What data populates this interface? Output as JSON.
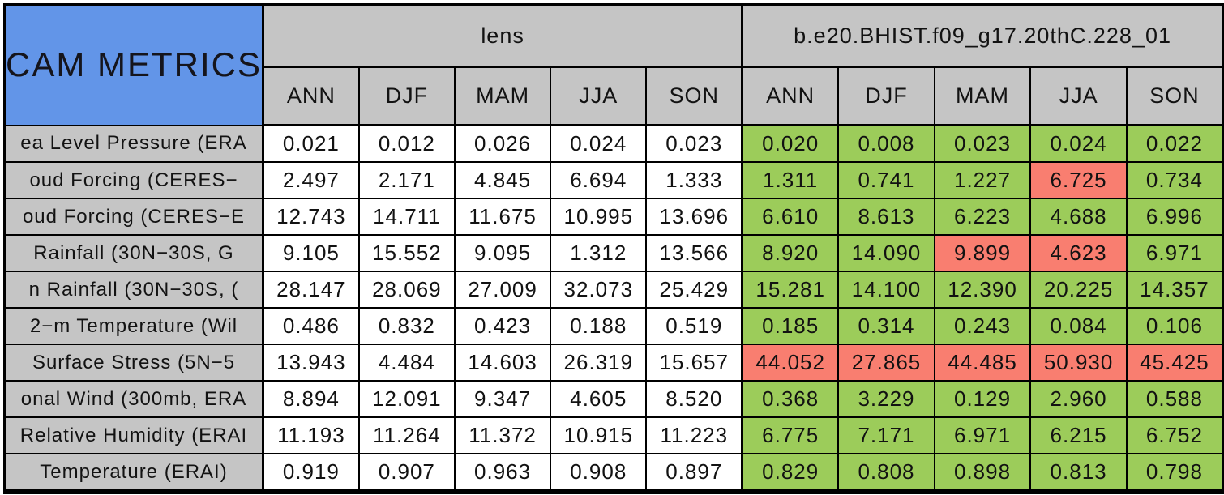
{
  "colors": {
    "title_background": "#6295e8",
    "header_background": "#c5c5c5",
    "pass_cell": "#9ccc5a",
    "fail_cell": "#f97e70",
    "plain_cell": "#ffffff",
    "border": "#000000"
  },
  "chart_data": {
    "type": "table",
    "title": "CAM METRICS",
    "column_groups": [
      {
        "label": "lens"
      },
      {
        "label": "b.e20.BHIST.f09_g17.20thC.228_01"
      }
    ],
    "seasons": [
      "ANN",
      "DJF",
      "MAM",
      "JJA",
      "SON"
    ],
    "rows": [
      {
        "label": "ea Level Pressure (ERA",
        "lens": [
          "0.021",
          "0.012",
          "0.026",
          "0.024",
          "0.023"
        ],
        "case": [
          "0.020",
          "0.008",
          "0.023",
          "0.024",
          "0.022"
        ],
        "case_flags": [
          "g",
          "g",
          "g",
          "g",
          "g"
        ]
      },
      {
        "label": "oud Forcing (CERES−",
        "lens": [
          "2.497",
          "2.171",
          "4.845",
          "6.694",
          "1.333"
        ],
        "case": [
          "1.311",
          "0.741",
          "1.227",
          "6.725",
          "0.734"
        ],
        "case_flags": [
          "g",
          "g",
          "g",
          "r",
          "g"
        ]
      },
      {
        "label": "oud Forcing (CERES−E",
        "lens": [
          "12.743",
          "14.711",
          "11.675",
          "10.995",
          "13.696"
        ],
        "case": [
          "6.610",
          "8.613",
          "6.223",
          "4.688",
          "6.996"
        ],
        "case_flags": [
          "g",
          "g",
          "g",
          "g",
          "g"
        ]
      },
      {
        "label": "Rainfall (30N−30S, G",
        "lens": [
          "9.105",
          "15.552",
          "9.095",
          "1.312",
          "13.566"
        ],
        "case": [
          "8.920",
          "14.090",
          "9.899",
          "4.623",
          "6.971"
        ],
        "case_flags": [
          "g",
          "g",
          "r",
          "r",
          "g"
        ]
      },
      {
        "label": "n Rainfall (30N−30S, (",
        "lens": [
          "28.147",
          "28.069",
          "27.009",
          "32.073",
          "25.429"
        ],
        "case": [
          "15.281",
          "14.100",
          "12.390",
          "20.225",
          "14.357"
        ],
        "case_flags": [
          "g",
          "g",
          "g",
          "g",
          "g"
        ]
      },
      {
        "label": "2−m Temperature (Wil",
        "lens": [
          "0.486",
          "0.832",
          "0.423",
          "0.188",
          "0.519"
        ],
        "case": [
          "0.185",
          "0.314",
          "0.243",
          "0.084",
          "0.106"
        ],
        "case_flags": [
          "g",
          "g",
          "g",
          "g",
          "g"
        ]
      },
      {
        "label": "Surface Stress (5N−5",
        "lens": [
          "13.943",
          "4.484",
          "14.603",
          "26.319",
          "15.657"
        ],
        "case": [
          "44.052",
          "27.865",
          "44.485",
          "50.930",
          "45.425"
        ],
        "case_flags": [
          "r",
          "r",
          "r",
          "r",
          "r"
        ]
      },
      {
        "label": "onal Wind (300mb, ERA",
        "lens": [
          "8.894",
          "12.091",
          "9.347",
          "4.605",
          "8.520"
        ],
        "case": [
          "0.368",
          "3.229",
          "0.129",
          "2.960",
          "0.588"
        ],
        "case_flags": [
          "g",
          "g",
          "g",
          "g",
          "g"
        ]
      },
      {
        "label": "Relative Humidity (ERAI",
        "lens": [
          "11.193",
          "11.264",
          "11.372",
          "10.915",
          "11.223"
        ],
        "case": [
          "6.775",
          "7.171",
          "6.971",
          "6.215",
          "6.752"
        ],
        "case_flags": [
          "g",
          "g",
          "g",
          "g",
          "g"
        ]
      },
      {
        "label": "Temperature (ERAI)",
        "lens": [
          "0.919",
          "0.907",
          "0.963",
          "0.908",
          "0.897"
        ],
        "case": [
          "0.829",
          "0.808",
          "0.898",
          "0.813",
          "0.798"
        ],
        "case_flags": [
          "g",
          "g",
          "g",
          "g",
          "g"
        ]
      }
    ]
  }
}
